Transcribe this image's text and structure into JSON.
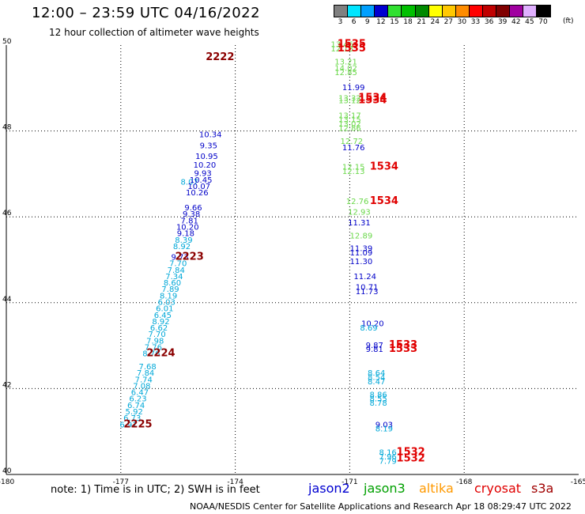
{
  "header": {
    "title": "12:00 – 23:59 UTC 04/16/2022",
    "subtitle": "12 hour collection of altimeter wave heights",
    "unit": "(ft)"
  },
  "colorbar": [
    {
      "label": "3",
      "color": "#808080"
    },
    {
      "label": "6",
      "color": "#00e5ff"
    },
    {
      "label": "9",
      "color": "#00a0ff"
    },
    {
      "label": "12",
      "color": "#0000d0"
    },
    {
      "label": "15",
      "color": "#30e030"
    },
    {
      "label": "18",
      "color": "#00c000"
    },
    {
      "label": "21",
      "color": "#008a00"
    },
    {
      "label": "24",
      "color": "#ffff00"
    },
    {
      "label": "27",
      "color": "#ffc800"
    },
    {
      "label": "30",
      "color": "#ff8c00"
    },
    {
      "label": "33",
      "color": "#ff0000"
    },
    {
      "label": "36",
      "color": "#c00000"
    },
    {
      "label": "39",
      "color": "#800000"
    },
    {
      "label": "42",
      "color": "#a000a0"
    },
    {
      "label": "45",
      "color": "#e0b0ff"
    },
    {
      "label": "70",
      "color": "#000000"
    }
  ],
  "note": "note:  1) Time is in UTC; 2) SWH is in feet",
  "satellites": [
    {
      "name": "jason2",
      "color": "#0000d0"
    },
    {
      "name": "jason3",
      "color": "#00a000"
    },
    {
      "name": "altika",
      "color": "#ff9900"
    },
    {
      "name": "cryosat",
      "color": "#e00000"
    },
    {
      "name": "s3a",
      "color": "#a00000"
    }
  ],
  "footer": "NOAA/NESDIS Center for Satellite Applications and Research    Apr 18 08:29:47 UTC 2022",
  "chart_data": {
    "type": "scatter",
    "xlim": [
      -180,
      -165
    ],
    "ylim": [
      40,
      50
    ],
    "xticks": [
      "-180",
      "-177",
      "-174",
      "-171",
      "-168",
      "-165"
    ],
    "yticks": [
      "40",
      "42",
      "44",
      "46",
      "48",
      "50"
    ],
    "grid": true,
    "series": [
      {
        "name": "s3a",
        "color": "#00a8d8",
        "points": [
          [
            -176.8,
            41.1,
            "6.91"
          ],
          [
            -176.7,
            41.25,
            "6.73"
          ],
          [
            -176.65,
            41.4,
            "5.92"
          ],
          [
            -176.6,
            41.55,
            "6.74"
          ],
          [
            -176.55,
            41.7,
            "6.23"
          ],
          [
            -176.5,
            41.85,
            "6.47"
          ],
          [
            -176.45,
            42.0,
            "7.08"
          ],
          [
            -176.4,
            42.15,
            "7.74"
          ],
          [
            -176.35,
            42.3,
            "7.84"
          ],
          [
            -176.3,
            42.45,
            "7.68"
          ],
          [
            -176.2,
            42.75,
            "8.76"
          ],
          [
            -176.15,
            42.9,
            "7.76"
          ],
          [
            -176.1,
            43.05,
            "7.98"
          ],
          [
            -176.05,
            43.2,
            "7.70"
          ],
          [
            -176.0,
            43.35,
            "6.62"
          ],
          [
            -175.95,
            43.5,
            "8.92"
          ],
          [
            -175.9,
            43.65,
            "6.45"
          ],
          [
            -175.85,
            43.8,
            "6.01"
          ],
          [
            -175.8,
            43.95,
            "6.03"
          ],
          [
            -175.75,
            44.1,
            "8.19"
          ],
          [
            -175.7,
            44.25,
            "7.89"
          ],
          [
            -175.65,
            44.4,
            "8.60"
          ],
          [
            -175.6,
            44.55,
            "7.34"
          ],
          [
            -175.55,
            44.7,
            "7.84"
          ],
          [
            -175.5,
            44.85,
            "7.70"
          ],
          [
            -175.4,
            45.25,
            "8.92"
          ],
          [
            -175.35,
            45.4,
            "8.39"
          ],
          [
            -175.2,
            46.75,
            "8.07"
          ]
        ]
      },
      {
        "name": "s3a",
        "color": "#0000c8",
        "points": [
          [
            -175.45,
            45.0,
            "9.73"
          ],
          [
            -175.3,
            45.55,
            "9.18"
          ],
          [
            -175.25,
            45.7,
            "10.20"
          ],
          [
            -175.2,
            45.85,
            "7.81"
          ],
          [
            -175.15,
            46.0,
            "9.38"
          ],
          [
            -175.1,
            46.15,
            "9.66"
          ],
          [
            -175.0,
            46.5,
            "10.26"
          ],
          [
            -174.95,
            46.65,
            "10.07"
          ],
          [
            -174.9,
            46.8,
            "10.45"
          ],
          [
            -174.85,
            46.95,
            "9.93"
          ],
          [
            -174.8,
            47.15,
            "10.20"
          ],
          [
            -174.75,
            47.35,
            "10.95"
          ],
          [
            -174.7,
            47.6,
            "9.35"
          ],
          [
            -174.65,
            47.85,
            "10.34"
          ]
        ]
      },
      {
        "name": "jason3",
        "color": "#6ad84a",
        "points": [
          [
            -171.2,
            49.95,
            "13.46"
          ],
          [
            -171.2,
            49.85,
            "12.13"
          ],
          [
            -171.1,
            49.55,
            "13.21"
          ],
          [
            -171.1,
            49.4,
            "14.02"
          ],
          [
            -171.1,
            49.3,
            "12.85"
          ],
          [
            -171.0,
            48.7,
            "13.32"
          ],
          [
            -171.0,
            48.65,
            "13.12"
          ],
          [
            -171.0,
            48.3,
            "13.17"
          ],
          [
            -171.0,
            48.2,
            "13.15"
          ],
          [
            -171.0,
            48.1,
            "13.02"
          ],
          [
            -171.0,
            48.0,
            "12.86"
          ],
          [
            -170.95,
            47.7,
            "12.72"
          ],
          [
            -170.9,
            47.1,
            "12.15"
          ],
          [
            -170.9,
            47.0,
            "12.13"
          ],
          [
            -170.8,
            46.3,
            "12.76"
          ],
          [
            -170.75,
            46.05,
            "12.93"
          ],
          [
            -170.7,
            45.5,
            "12.89"
          ]
        ]
      },
      {
        "name": "jason3",
        "color": "#0000c8",
        "points": [
          [
            -170.9,
            48.95,
            "11.99"
          ],
          [
            -170.9,
            47.55,
            "11.76"
          ],
          [
            -170.75,
            45.8,
            "11.31"
          ],
          [
            -170.7,
            45.2,
            "11.39"
          ],
          [
            -170.7,
            45.1,
            "11.09"
          ],
          [
            -170.7,
            44.9,
            "11.30"
          ],
          [
            -170.6,
            44.55,
            "11.24"
          ],
          [
            -170.55,
            44.3,
            "10.71"
          ],
          [
            -170.55,
            44.2,
            "11.73"
          ],
          [
            -170.4,
            43.45,
            "10.20"
          ],
          [
            -170.35,
            42.95,
            "9.87"
          ],
          [
            -170.35,
            42.85,
            "9.81"
          ],
          [
            -170.1,
            41.1,
            "9.03"
          ]
        ]
      },
      {
        "name": "jason3",
        "color": "#00a8d8",
        "points": [
          [
            -170.5,
            43.35,
            "8.69"
          ],
          [
            -170.3,
            42.3,
            "8.64"
          ],
          [
            -170.3,
            42.2,
            "8.54"
          ],
          [
            -170.3,
            42.1,
            "8.47"
          ],
          [
            -170.25,
            41.8,
            "8.86"
          ],
          [
            -170.25,
            41.7,
            "8.55"
          ],
          [
            -170.25,
            41.6,
            "8.78"
          ],
          [
            -170.1,
            41.0,
            "8.19"
          ],
          [
            -170.0,
            40.45,
            "8.16"
          ],
          [
            -170.0,
            40.35,
            "7.96"
          ],
          [
            -170.0,
            40.25,
            "7.79"
          ]
        ]
      }
    ],
    "annotations": [
      {
        "x": -174.4,
        "y": 49.65,
        "text": "2222",
        "color": "#8b0000"
      },
      {
        "x": -175.2,
        "y": 45.0,
        "text": "2223",
        "color": "#8b0000"
      },
      {
        "x": -175.95,
        "y": 42.75,
        "text": "2224",
        "color": "#8b0000"
      },
      {
        "x": -176.55,
        "y": 41.1,
        "text": "2225",
        "color": "#8b0000"
      },
      {
        "x": -170.95,
        "y": 49.95,
        "text": "1535",
        "color": "#e00000"
      },
      {
        "x": -170.95,
        "y": 49.85,
        "text": "1535",
        "color": "#e00000"
      },
      {
        "x": -170.4,
        "y": 48.7,
        "text": "1534",
        "color": "#e00000"
      },
      {
        "x": -170.4,
        "y": 48.65,
        "text": "1534",
        "color": "#e00000"
      },
      {
        "x": -170.1,
        "y": 47.1,
        "text": "1534",
        "color": "#e00000"
      },
      {
        "x": -170.1,
        "y": 46.3,
        "text": "1534",
        "color": "#e00000"
      },
      {
        "x": -169.6,
        "y": 42.95,
        "text": "1533",
        "color": "#e00000"
      },
      {
        "x": -169.6,
        "y": 42.85,
        "text": "1533",
        "color": "#e00000"
      },
      {
        "x": -169.4,
        "y": 40.45,
        "text": "1532",
        "color": "#e00000"
      },
      {
        "x": -169.4,
        "y": 40.3,
        "text": "1532",
        "color": "#e00000"
      }
    ]
  }
}
